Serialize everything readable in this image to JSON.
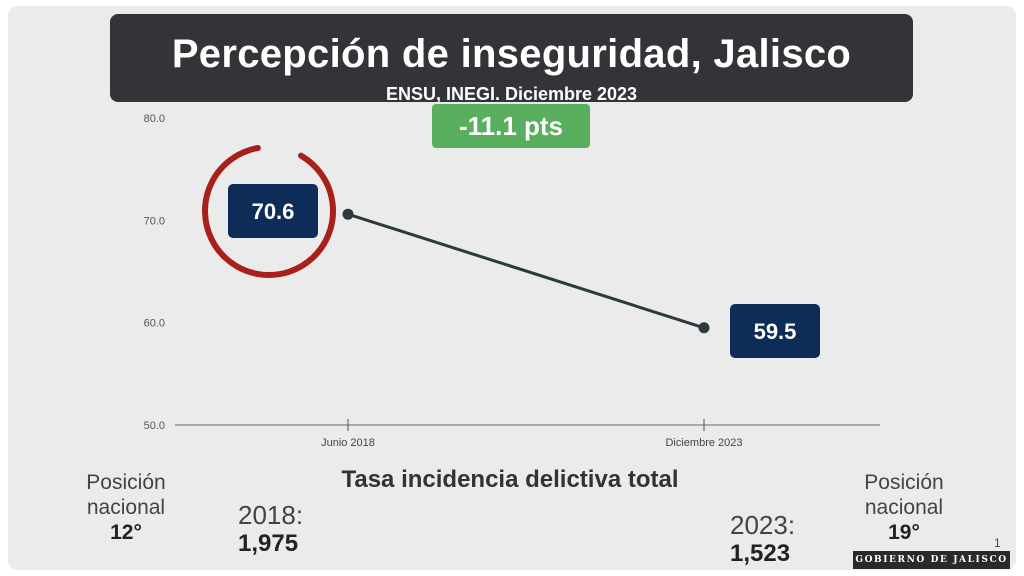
{
  "title": "Percepción de inseguridad, Jalisco",
  "subtitle": "ENSU, INEGI. Diciembre 2023",
  "change_badge": "-11.1 pts",
  "chart_data": {
    "type": "line",
    "title": "Percepción de inseguridad, Jalisco",
    "subtitle": "ENSU, INEGI. Diciembre 2023",
    "categories": [
      "Junio 2018",
      "Diciembre 2023"
    ],
    "series": [
      {
        "name": "Percepción de inseguridad",
        "values": [
          70.6,
          59.5
        ]
      }
    ],
    "value_labels": [
      "70.6",
      "59.5"
    ],
    "y_ticks": [
      "80.0",
      "70.0",
      "60.0",
      "50.0"
    ],
    "ylim": [
      50,
      80
    ],
    "highlight": "Junio 2018",
    "colors": {
      "line": "#2b3a3c",
      "label_box": "#0d2c57",
      "highlight_ring": "#a8201a",
      "badge": "#5aaf5e"
    }
  },
  "left_stats": {
    "label": "Posición nacional",
    "rank": "12°",
    "year": "2018:",
    "value": "1,975"
  },
  "center_title": "Tasa incidencia delictiva total",
  "right_stats": {
    "label": "Posición nacional",
    "rank": "19°",
    "year": "2023:",
    "value": "1,523"
  },
  "footer": {
    "logo_text": "GOBIERNO DE JALISCO",
    "page_number": "1"
  }
}
